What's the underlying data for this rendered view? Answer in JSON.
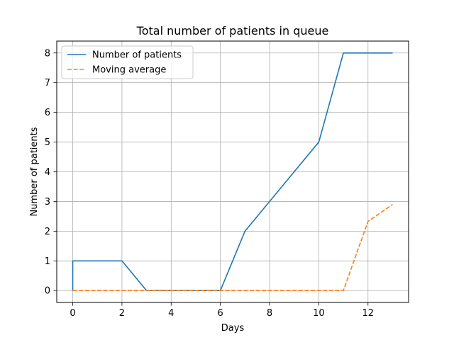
{
  "chart_data": {
    "type": "line",
    "title": "Total number of patients in queue",
    "xlabel": "Days",
    "ylabel": "Number of patients",
    "xlim": [
      -0.65,
      13.65
    ],
    "ylim": [
      -0.4,
      8.4
    ],
    "xticks": [
      0,
      2,
      4,
      6,
      8,
      10,
      12
    ],
    "yticks": [
      0,
      1,
      2,
      3,
      4,
      5,
      6,
      7,
      8
    ],
    "grid": true,
    "legend_position": "upper-left",
    "series": [
      {
        "name": "Number of patients",
        "color": "#1f77b4",
        "style": "solid",
        "x": [
          0,
          0,
          2,
          3,
          6,
          7,
          10,
          11,
          13
        ],
        "y": [
          0,
          1,
          1,
          0,
          0,
          2,
          5,
          8,
          8
        ]
      },
      {
        "name": "Moving average",
        "color": "#ff7f0e",
        "style": "dashed",
        "x": [
          0,
          11,
          12,
          13
        ],
        "y": [
          0,
          0,
          2.33,
          2.9
        ]
      }
    ]
  }
}
